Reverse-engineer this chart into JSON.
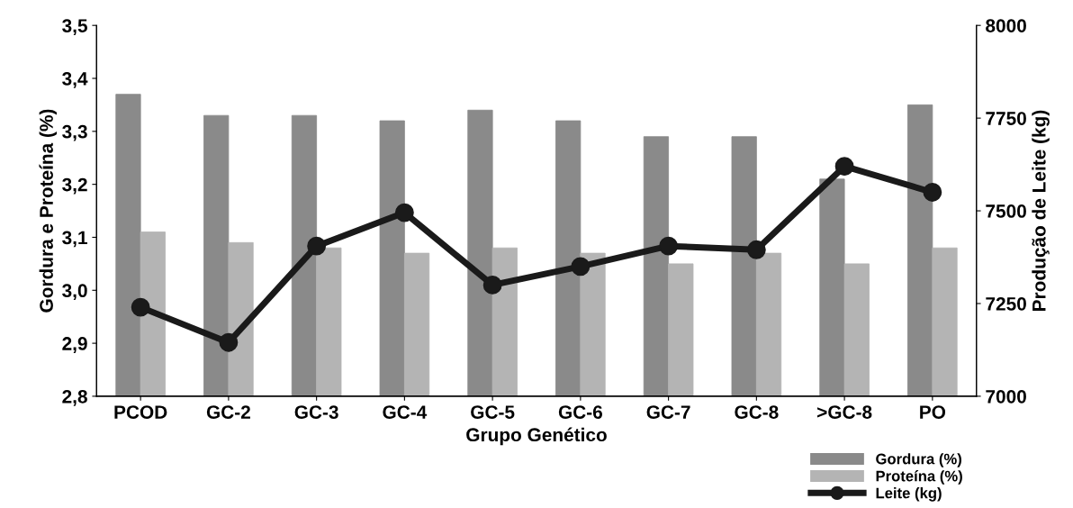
{
  "chart_data": {
    "type": "bar",
    "xlabel": "Grupo Genético",
    "ylabel": "Gordura e Proteína (%)",
    "y2label": "Produção de Leite (kg)",
    "categories": [
      "PCOD",
      "GC-2",
      "GC-3",
      "GC-4",
      "GC-5",
      "GC-6",
      "GC-7",
      "GC-8",
      ">GC-8",
      "PO"
    ],
    "series": [
      {
        "name": "Gordura (%)",
        "color": "#8a8a8a",
        "values": [
          3.37,
          3.33,
          3.33,
          3.32,
          3.34,
          3.32,
          3.29,
          3.29,
          3.21,
          3.35
        ]
      },
      {
        "name": "Proteína (%)",
        "color": "#b4b4b4",
        "values": [
          3.11,
          3.09,
          3.08,
          3.07,
          3.08,
          3.07,
          3.05,
          3.07,
          3.05,
          3.08
        ]
      },
      {
        "name": "Leite (kg)",
        "type": "line",
        "axis": "y2",
        "color": "#1a1a1a",
        "marker": "circle",
        "values": [
          7240,
          7145,
          7405,
          7495,
          7300,
          7350,
          7405,
          7395,
          7620,
          7550
        ]
      }
    ],
    "ylim": [
      2.8,
      3.5
    ],
    "yticks": [
      {
        "value": 2.8,
        "label": "2,8"
      },
      {
        "value": 2.9,
        "label": "2,9"
      },
      {
        "value": 3.0,
        "label": "3,0"
      },
      {
        "value": 3.1,
        "label": "3,1"
      },
      {
        "value": 3.2,
        "label": "3,2"
      },
      {
        "value": 3.3,
        "label": "3,3"
      },
      {
        "value": 3.4,
        "label": "3,4"
      },
      {
        "value": 3.5,
        "label": "3,5"
      }
    ],
    "y2lim": [
      7000,
      8000
    ],
    "y2ticks": [
      7000,
      7250,
      7500,
      7750,
      8000
    ],
    "legend": "bottom right",
    "grid": false
  }
}
